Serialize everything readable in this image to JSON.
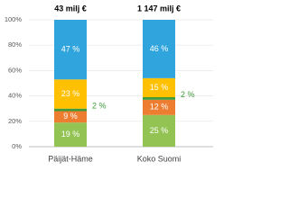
{
  "chart_data": {
    "type": "stacked_bar",
    "categories": [
      "Päijät-Häme",
      "Koko Suomi"
    ],
    "bar_labels": [
      "43 milj €",
      "1 147 milj €"
    ],
    "series": [
      {
        "color": "#92c353",
        "values": [
          19,
          25
        ],
        "value_labels": [
          "19 %",
          "25 %"
        ]
      },
      {
        "color": "#ed7d31",
        "values": [
          9,
          12
        ],
        "value_labels": [
          "9 %",
          "12 %"
        ]
      },
      {
        "color": "#3f9b3a",
        "values": [
          2,
          2
        ],
        "value_labels": [
          "2 %",
          "2 %"
        ],
        "label_position": "outside"
      },
      {
        "color": "#ffc000",
        "values": [
          23,
          15
        ],
        "value_labels": [
          "23 %",
          "15 %"
        ]
      },
      {
        "color": "#2fa4dd",
        "values": [
          47,
          46
        ],
        "value_labels": [
          "47 %",
          "46 %"
        ]
      }
    ],
    "ylim": [
      0,
      100
    ],
    "yticks": [
      {
        "value": 0,
        "label": "0%"
      },
      {
        "value": 20,
        "label": "20%"
      },
      {
        "value": 40,
        "label": "40%"
      },
      {
        "value": 60,
        "label": "60%"
      },
      {
        "value": 80,
        "label": "80%"
      },
      {
        "value": 100,
        "label": "100%"
      }
    ],
    "grid": true
  }
}
